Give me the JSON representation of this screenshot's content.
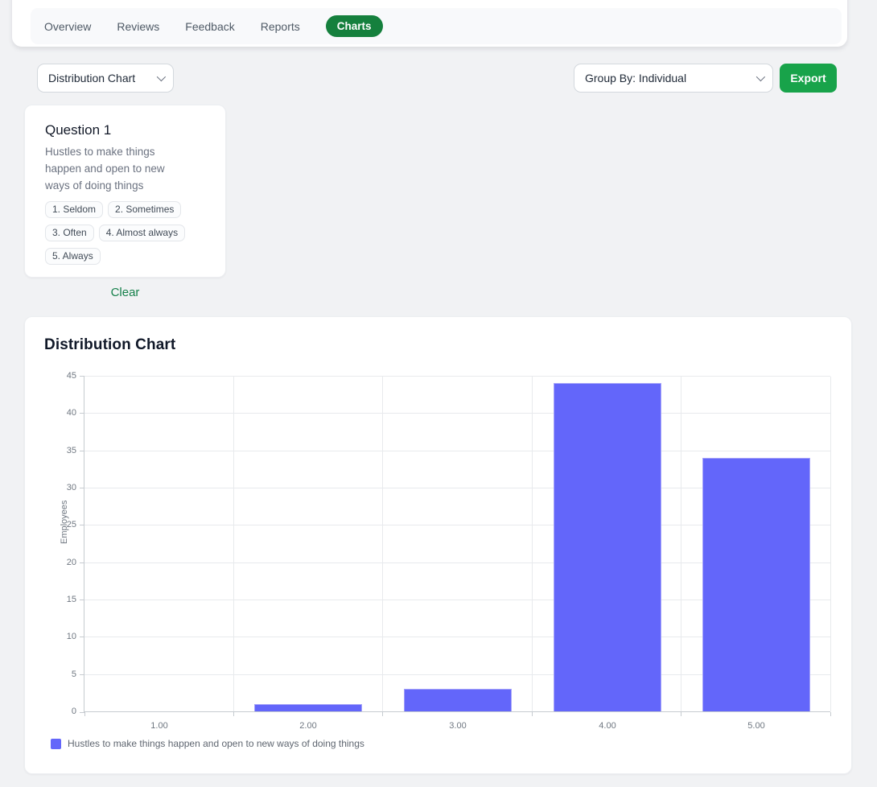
{
  "tabs": {
    "items": [
      "Overview",
      "Reviews",
      "Feedback",
      "Reports",
      "Charts"
    ],
    "active": "Charts",
    "active_color": "#15803d"
  },
  "controls": {
    "chart_type_select": {
      "value": "Distribution Chart"
    },
    "group_by_select": {
      "value": "Group By: Individual"
    },
    "export_label": "Export",
    "export_color": "#18a34a"
  },
  "question_card": {
    "title": "Question 1",
    "description": "Hustles to make things happen and open to new ways of doing things",
    "options": [
      "1. Seldom",
      "2. Sometimes",
      "3. Often",
      "4. Almost always",
      "5. Always"
    ],
    "clear_label": "Clear"
  },
  "chart_card": {
    "title": "Distribution Chart"
  },
  "chart_data": {
    "type": "bar",
    "title": "Distribution Chart",
    "categories": [
      "1.00",
      "2.00",
      "3.00",
      "4.00",
      "5.00"
    ],
    "values": [
      0,
      1,
      3,
      44,
      34
    ],
    "xlabel": "",
    "ylabel": "Employees",
    "ylim": [
      0,
      45
    ],
    "ytick_step": 5,
    "grid": true,
    "bar_color": "#6366fa",
    "legend_position": "bottom-left",
    "legend": [
      {
        "label": "Hustles to make things happen and open to new ways of doing things",
        "color": "#6366fa"
      }
    ]
  }
}
